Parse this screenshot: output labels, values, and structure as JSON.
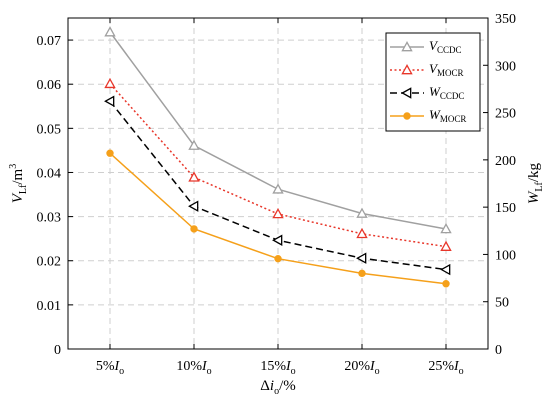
{
  "chart_data": {
    "type": "line",
    "categories": [
      "5%",
      "10%",
      "15%",
      "20%",
      "25%"
    ],
    "x_tick_suffix": {
      "main": "I",
      "sub": "o"
    },
    "xlabel": {
      "pre": "Δ",
      "var": "i",
      "sub": "o",
      "post": "/%"
    },
    "ylabel_left": {
      "var": "V",
      "sub": "Lf",
      "post": "/m",
      "sup": "3"
    },
    "ylabel_right": {
      "var": "W",
      "sub": "Lf",
      "post": "/kg"
    },
    "ylim_left": [
      0,
      0.075
    ],
    "yticks_left": [
      "0",
      "0.01",
      "0.02",
      "0.03",
      "0.04",
      "0.05",
      "0.06",
      "0.07"
    ],
    "ylim_right": [
      0,
      350
    ],
    "yticks_right": [
      "0",
      "50",
      "100",
      "150",
      "200",
      "250",
      "300",
      "350"
    ],
    "grid": true,
    "legend_position": "top-right",
    "series": [
      {
        "name": "V",
        "name_sub": "CCDC",
        "axis": "left",
        "color": "#a0a0a0",
        "dash": "solid",
        "marker": "triangle-up",
        "values": [
          0.0718,
          0.0461,
          0.0362,
          0.0307,
          0.0272
        ]
      },
      {
        "name": "V",
        "name_sub": "MOCR",
        "axis": "left",
        "color": "#e8362a",
        "dash": "dotted",
        "marker": "triangle-up",
        "values": [
          0.0601,
          0.0389,
          0.0306,
          0.0261,
          0.0232
        ]
      },
      {
        "name": "W",
        "name_sub": "CCDC",
        "axis": "right",
        "color": "#000000",
        "dash": "dashed",
        "marker": "triangle-left",
        "values": [
          262,
          151,
          115,
          96,
          84
        ]
      },
      {
        "name": "W",
        "name_sub": "MOCR",
        "axis": "right",
        "color": "#f5a01a",
        "dash": "solid",
        "marker": "circle",
        "values": [
          207,
          127,
          95.5,
          80,
          69
        ]
      }
    ]
  }
}
